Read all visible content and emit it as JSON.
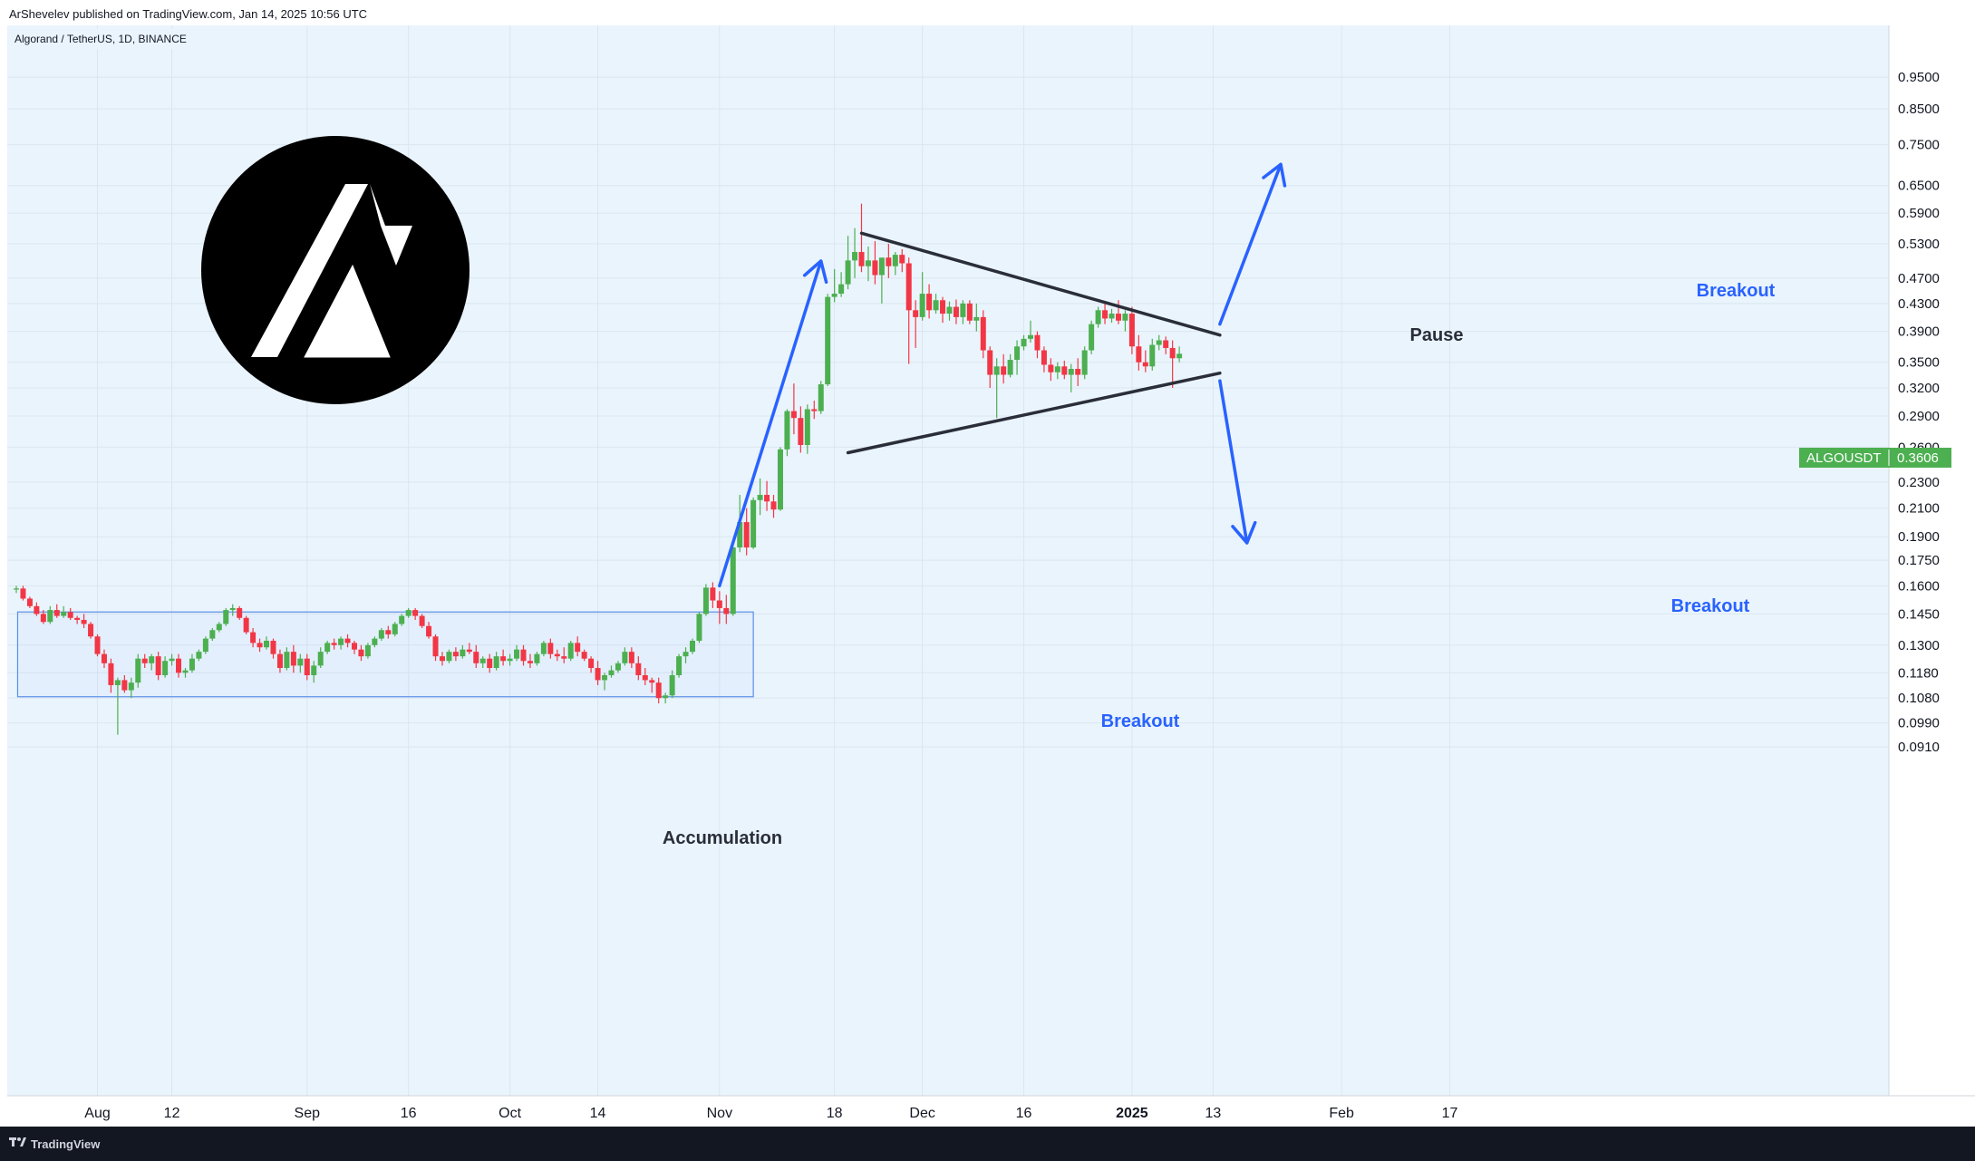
{
  "header": {
    "published_by": "ArShevelev published on TradingView.com, Jan 14, 2025 10:56 UTC"
  },
  "symbol_title": "Algorand / TetherUS, 1D, BINANCE",
  "price_tag": {
    "label": "ALGOUSDT",
    "value": "0.3606"
  },
  "footer": {
    "brand": "TradingView"
  },
  "annotations": {
    "accumulation": "Accumulation",
    "breakout_left": "Breakout",
    "pause": "Pause",
    "breakout_up": "Breakout",
    "breakout_down": "Breakout"
  },
  "colors": {
    "up": "#26a69a",
    "up_body": "#4caf50",
    "down": "#f23645",
    "annotation_blue": "#2962ff",
    "background": "#eaf4fd",
    "pattern_line": "#2a2e39",
    "price_tag": "#4caf50"
  },
  "chart_data": {
    "type": "candlestick",
    "y_scale": "log",
    "y_ticks": [
      "0.9500",
      "0.8500",
      "0.7500",
      "0.6500",
      "0.5900",
      "0.5300",
      "0.4700",
      "0.4300",
      "0.3900",
      "0.3500",
      "0.3200",
      "0.2900",
      "0.2600",
      "0.2300",
      "0.2100",
      "0.1900",
      "0.1750",
      "0.1600",
      "0.1450",
      "0.1300",
      "0.1180",
      "0.1080",
      "0.0990",
      "0.0910"
    ],
    "x_ticks": [
      "Aug",
      "12",
      "Sep",
      "16",
      "Oct",
      "14",
      "Nov",
      "18",
      "Dec",
      "16",
      "2025",
      "13",
      "Feb",
      "17"
    ],
    "x_tick_dates": [
      "2024-08-01",
      "2024-08-12",
      "2024-09-01",
      "2024-09-16",
      "2024-10-01",
      "2024-10-14",
      "2024-11-01",
      "2024-11-18",
      "2024-12-01",
      "2024-12-16",
      "2025-01-01",
      "2025-01-13",
      "2025-02-01",
      "2025-02-17"
    ],
    "start_date": "2024-07-20",
    "last_price": 0.3606,
    "candles": [
      [
        0.158,
        0.16,
        0.156,
        0.1585
      ],
      [
        0.1585,
        0.16,
        0.152,
        0.153
      ],
      [
        0.153,
        0.154,
        0.148,
        0.149
      ],
      [
        0.149,
        0.151,
        0.144,
        0.145
      ],
      [
        0.145,
        0.147,
        0.14,
        0.141
      ],
      [
        0.141,
        0.149,
        0.14,
        0.147
      ],
      [
        0.147,
        0.15,
        0.143,
        0.144
      ],
      [
        0.144,
        0.149,
        0.143,
        0.146
      ],
      [
        0.146,
        0.148,
        0.142,
        0.143
      ],
      [
        0.143,
        0.144,
        0.14,
        0.142
      ],
      [
        0.142,
        0.145,
        0.138,
        0.14
      ],
      [
        0.14,
        0.141,
        0.133,
        0.134
      ],
      [
        0.134,
        0.135,
        0.125,
        0.126
      ],
      [
        0.126,
        0.128,
        0.12,
        0.122
      ],
      [
        0.122,
        0.124,
        0.11,
        0.113
      ],
      [
        0.113,
        0.116,
        0.095,
        0.115
      ],
      [
        0.115,
        0.117,
        0.11,
        0.111
      ],
      [
        0.111,
        0.116,
        0.108,
        0.114
      ],
      [
        0.114,
        0.126,
        0.112,
        0.124
      ],
      [
        0.124,
        0.126,
        0.12,
        0.122
      ],
      [
        0.122,
        0.126,
        0.119,
        0.125
      ],
      [
        0.125,
        0.127,
        0.115,
        0.117
      ],
      [
        0.117,
        0.125,
        0.116,
        0.123
      ],
      [
        0.123,
        0.126,
        0.121,
        0.124
      ],
      [
        0.124,
        0.126,
        0.116,
        0.118
      ],
      [
        0.118,
        0.12,
        0.116,
        0.119
      ],
      [
        0.119,
        0.126,
        0.118,
        0.124
      ],
      [
        0.124,
        0.128,
        0.123,
        0.127
      ],
      [
        0.127,
        0.134,
        0.126,
        0.133
      ],
      [
        0.133,
        0.138,
        0.132,
        0.137
      ],
      [
        0.137,
        0.141,
        0.136,
        0.14
      ],
      [
        0.14,
        0.148,
        0.139,
        0.147
      ],
      [
        0.147,
        0.15,
        0.144,
        0.148
      ],
      [
        0.148,
        0.149,
        0.142,
        0.143
      ],
      [
        0.143,
        0.144,
        0.135,
        0.136
      ],
      [
        0.136,
        0.138,
        0.129,
        0.131
      ],
      [
        0.131,
        0.133,
        0.127,
        0.129
      ],
      [
        0.129,
        0.134,
        0.128,
        0.132
      ],
      [
        0.132,
        0.133,
        0.124,
        0.126
      ],
      [
        0.126,
        0.128,
        0.118,
        0.12
      ],
      [
        0.12,
        0.129,
        0.119,
        0.127
      ],
      [
        0.127,
        0.13,
        0.118,
        0.121
      ],
      [
        0.121,
        0.126,
        0.118,
        0.124
      ],
      [
        0.124,
        0.126,
        0.115,
        0.117
      ],
      [
        0.117,
        0.123,
        0.114,
        0.121
      ],
      [
        0.121,
        0.129,
        0.12,
        0.127
      ],
      [
        0.127,
        0.132,
        0.126,
        0.131
      ],
      [
        0.131,
        0.133,
        0.128,
        0.13
      ],
      [
        0.13,
        0.134,
        0.128,
        0.133
      ],
      [
        0.133,
        0.135,
        0.129,
        0.131
      ],
      [
        0.131,
        0.132,
        0.126,
        0.128
      ],
      [
        0.128,
        0.13,
        0.123,
        0.125
      ],
      [
        0.125,
        0.131,
        0.124,
        0.13
      ],
      [
        0.13,
        0.134,
        0.129,
        0.133
      ],
      [
        0.133,
        0.138,
        0.132,
        0.137
      ],
      [
        0.137,
        0.139,
        0.133,
        0.135
      ],
      [
        0.135,
        0.141,
        0.134,
        0.14
      ],
      [
        0.14,
        0.145,
        0.139,
        0.144
      ],
      [
        0.144,
        0.148,
        0.143,
        0.147
      ],
      [
        0.147,
        0.148,
        0.142,
        0.144
      ],
      [
        0.144,
        0.145,
        0.138,
        0.139
      ],
      [
        0.139,
        0.141,
        0.133,
        0.134
      ],
      [
        0.134,
        0.135,
        0.123,
        0.125
      ],
      [
        0.125,
        0.127,
        0.121,
        0.123
      ],
      [
        0.123,
        0.128,
        0.122,
        0.127
      ],
      [
        0.127,
        0.129,
        0.123,
        0.125
      ],
      [
        0.125,
        0.13,
        0.124,
        0.128
      ],
      [
        0.128,
        0.131,
        0.126,
        0.127
      ],
      [
        0.127,
        0.13,
        0.12,
        0.122
      ],
      [
        0.122,
        0.125,
        0.12,
        0.124
      ],
      [
        0.124,
        0.126,
        0.118,
        0.12
      ],
      [
        0.12,
        0.127,
        0.119,
        0.125
      ],
      [
        0.125,
        0.128,
        0.121,
        0.123
      ],
      [
        0.123,
        0.126,
        0.121,
        0.124
      ],
      [
        0.124,
        0.13,
        0.123,
        0.128
      ],
      [
        0.128,
        0.13,
        0.121,
        0.123
      ],
      [
        0.123,
        0.126,
        0.12,
        0.122
      ],
      [
        0.122,
        0.127,
        0.121,
        0.126
      ],
      [
        0.126,
        0.132,
        0.125,
        0.131
      ],
      [
        0.131,
        0.133,
        0.124,
        0.126
      ],
      [
        0.126,
        0.128,
        0.123,
        0.125
      ],
      [
        0.125,
        0.129,
        0.122,
        0.124
      ],
      [
        0.124,
        0.132,
        0.123,
        0.131
      ],
      [
        0.131,
        0.134,
        0.125,
        0.127
      ],
      [
        0.127,
        0.128,
        0.123,
        0.124
      ],
      [
        0.124,
        0.125,
        0.118,
        0.12
      ],
      [
        0.12,
        0.123,
        0.113,
        0.115
      ],
      [
        0.115,
        0.118,
        0.111,
        0.117
      ],
      [
        0.117,
        0.121,
        0.116,
        0.119
      ],
      [
        0.119,
        0.123,
        0.118,
        0.122
      ],
      [
        0.122,
        0.129,
        0.121,
        0.127
      ],
      [
        0.127,
        0.129,
        0.12,
        0.122
      ],
      [
        0.122,
        0.125,
        0.115,
        0.117
      ],
      [
        0.117,
        0.12,
        0.113,
        0.115
      ],
      [
        0.115,
        0.116,
        0.11,
        0.114
      ],
      [
        0.114,
        0.116,
        0.106,
        0.108
      ],
      [
        0.108,
        0.11,
        0.106,
        0.109
      ],
      [
        0.109,
        0.119,
        0.108,
        0.117
      ],
      [
        0.117,
        0.126,
        0.116,
        0.125
      ],
      [
        0.125,
        0.129,
        0.122,
        0.127
      ],
      [
        0.127,
        0.133,
        0.126,
        0.132
      ],
      [
        0.132,
        0.146,
        0.131,
        0.145
      ],
      [
        0.145,
        0.161,
        0.144,
        0.159
      ],
      [
        0.159,
        0.162,
        0.148,
        0.152
      ],
      [
        0.152,
        0.157,
        0.14,
        0.148
      ],
      [
        0.148,
        0.155,
        0.14,
        0.145
      ],
      [
        0.145,
        0.185,
        0.144,
        0.183
      ],
      [
        0.183,
        0.22,
        0.18,
        0.2
      ],
      [
        0.2,
        0.21,
        0.178,
        0.183
      ],
      [
        0.183,
        0.218,
        0.182,
        0.216
      ],
      [
        0.216,
        0.233,
        0.205,
        0.22
      ],
      [
        0.22,
        0.231,
        0.208,
        0.215
      ],
      [
        0.215,
        0.22,
        0.203,
        0.209
      ],
      [
        0.209,
        0.26,
        0.208,
        0.258
      ],
      [
        0.258,
        0.297,
        0.252,
        0.295
      ],
      [
        0.295,
        0.325,
        0.272,
        0.288
      ],
      [
        0.288,
        0.3,
        0.255,
        0.262
      ],
      [
        0.262,
        0.302,
        0.254,
        0.297
      ],
      [
        0.297,
        0.306,
        0.287,
        0.295
      ],
      [
        0.295,
        0.328,
        0.292,
        0.324
      ],
      [
        0.324,
        0.445,
        0.322,
        0.44
      ],
      [
        0.44,
        0.485,
        0.432,
        0.445
      ],
      [
        0.445,
        0.48,
        0.44,
        0.46
      ],
      [
        0.46,
        0.545,
        0.452,
        0.5
      ],
      [
        0.5,
        0.56,
        0.47,
        0.515
      ],
      [
        0.515,
        0.61,
        0.48,
        0.49
      ],
      [
        0.49,
        0.525,
        0.465,
        0.5
      ],
      [
        0.5,
        0.535,
        0.46,
        0.475
      ],
      [
        0.475,
        0.5,
        0.43,
        0.505
      ],
      [
        0.505,
        0.53,
        0.47,
        0.49
      ],
      [
        0.49,
        0.515,
        0.475,
        0.51
      ],
      [
        0.51,
        0.52,
        0.48,
        0.495
      ],
      [
        0.495,
        0.505,
        0.348,
        0.42
      ],
      [
        0.42,
        0.435,
        0.368,
        0.41
      ],
      [
        0.41,
        0.48,
        0.405,
        0.445
      ],
      [
        0.445,
        0.46,
        0.408,
        0.42
      ],
      [
        0.42,
        0.445,
        0.415,
        0.435
      ],
      [
        0.435,
        0.44,
        0.402,
        0.415
      ],
      [
        0.415,
        0.433,
        0.405,
        0.425
      ],
      [
        0.425,
        0.436,
        0.4,
        0.41
      ],
      [
        0.41,
        0.435,
        0.4,
        0.43
      ],
      [
        0.43,
        0.435,
        0.4,
        0.405
      ],
      [
        0.405,
        0.43,
        0.39,
        0.41
      ],
      [
        0.41,
        0.42,
        0.355,
        0.365
      ],
      [
        0.365,
        0.37,
        0.32,
        0.335
      ],
      [
        0.335,
        0.355,
        0.288,
        0.345
      ],
      [
        0.345,
        0.36,
        0.325,
        0.335
      ],
      [
        0.335,
        0.36,
        0.332,
        0.353
      ],
      [
        0.353,
        0.378,
        0.335,
        0.37
      ],
      [
        0.37,
        0.385,
        0.365,
        0.38
      ],
      [
        0.38,
        0.405,
        0.375,
        0.385
      ],
      [
        0.385,
        0.39,
        0.355,
        0.365
      ],
      [
        0.365,
        0.37,
        0.338,
        0.347
      ],
      [
        0.347,
        0.355,
        0.328,
        0.338
      ],
      [
        0.338,
        0.35,
        0.33,
        0.345
      ],
      [
        0.345,
        0.352,
        0.33,
        0.335
      ],
      [
        0.335,
        0.348,
        0.315,
        0.342
      ],
      [
        0.342,
        0.355,
        0.322,
        0.335
      ],
      [
        0.335,
        0.37,
        0.33,
        0.365
      ],
      [
        0.365,
        0.405,
        0.36,
        0.4
      ],
      [
        0.4,
        0.425,
        0.395,
        0.42
      ],
      [
        0.42,
        0.432,
        0.4,
        0.408
      ],
      [
        0.408,
        0.422,
        0.402,
        0.415
      ],
      [
        0.415,
        0.435,
        0.4,
        0.405
      ],
      [
        0.405,
        0.42,
        0.39,
        0.415
      ],
      [
        0.415,
        0.425,
        0.36,
        0.37
      ],
      [
        0.37,
        0.385,
        0.34,
        0.35
      ],
      [
        0.35,
        0.365,
        0.338,
        0.345
      ],
      [
        0.345,
        0.38,
        0.34,
        0.372
      ],
      [
        0.372,
        0.385,
        0.365,
        0.378
      ],
      [
        0.378,
        0.383,
        0.36,
        0.368
      ],
      [
        0.368,
        0.378,
        0.32,
        0.355
      ],
      [
        0.355,
        0.37,
        0.35,
        0.3606
      ]
    ],
    "accumulation_box": {
      "start_index": 1,
      "end_index": 109,
      "low": 0.1085,
      "high": 0.146
    },
    "pattern_lines": [
      {
        "from": {
          "index": 125,
          "price": 0.55
        },
        "to": {
          "index": 178,
          "price": 0.385
        }
      },
      {
        "from": {
          "index": 123,
          "price": 0.255
        },
        "to": {
          "index": 178,
          "price": 0.337
        }
      }
    ],
    "arrows": [
      {
        "from": {
          "index": 104,
          "price": 0.16
        },
        "to": {
          "index": 119,
          "price": 0.499
        }
      },
      {
        "from": {
          "index": 178,
          "price": 0.4
        },
        "to": {
          "index": 187,
          "price": 0.7
        }
      },
      {
        "from": {
          "index": 178,
          "price": 0.328
        },
        "to": {
          "index": 182,
          "price": 0.186
        }
      }
    ]
  }
}
